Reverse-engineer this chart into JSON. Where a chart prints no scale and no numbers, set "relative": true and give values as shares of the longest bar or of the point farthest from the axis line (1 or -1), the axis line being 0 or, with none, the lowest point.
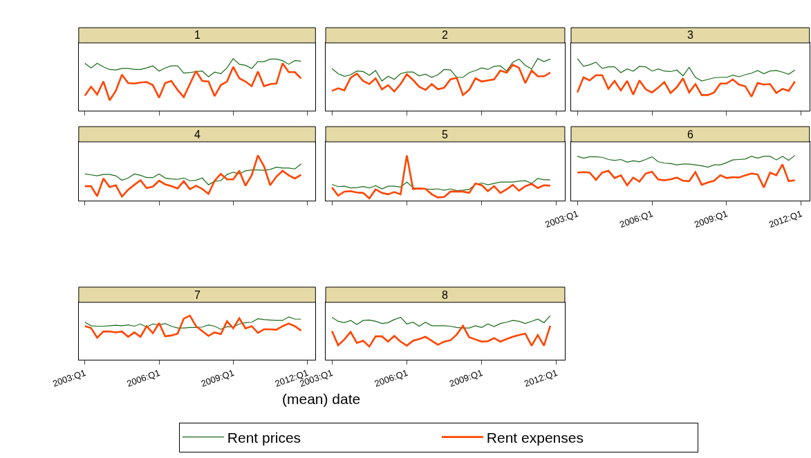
{
  "chart_data": [
    {
      "type": "line",
      "title": "1",
      "relative": true,
      "tick_labels": false,
      "legend": "bottom",
      "x": [
        "2003-01",
        "2003-04",
        "2003-07",
        "2003-10",
        "2004-01",
        "2004-04",
        "2004-07",
        "2004-10",
        "2005-01",
        "2005-04",
        "2005-07",
        "2005-10",
        "2006-01",
        "2006-04",
        "2006-07",
        "2006-10",
        "2007-01",
        "2007-04",
        "2007-07",
        "2007-10",
        "2008-01",
        "2008-04",
        "2008-07",
        "2008-10",
        "2009-01",
        "2009-04",
        "2009-07",
        "2009-10",
        "2010-01",
        "2010-04",
        "2010-07",
        "2010-10",
        "2011-01",
        "2011-04",
        "2011-07",
        "2011-10"
      ],
      "xlim": [
        "2002-10",
        "2012-05"
      ],
      "xticks": [
        {
          "value": "2003-01",
          "label": null
        },
        {
          "value": "2006-01",
          "label": null
        },
        {
          "value": "2009-01",
          "label": null
        },
        {
          "value": "2012-01",
          "label": null
        }
      ],
      "series": [
        {
          "name": "Rent prices",
          "color": "#1a6b1a",
          "values": [
            0.91,
            0.82,
            0.91,
            0.84,
            0.79,
            0.78,
            0.81,
            0.81,
            0.79,
            0.79,
            0.82,
            0.86,
            0.76,
            0.82,
            0.86,
            0.86,
            0.72,
            0.73,
            0.75,
            0.76,
            0.65,
            0.74,
            0.71,
            0.82,
            1.0,
            0.89,
            0.87,
            0.81,
            0.94,
            0.94,
            0.99,
            0.99,
            0.96,
            0.89,
            0.96,
            0.95
          ]
        },
        {
          "name": "Rent expenses",
          "color": "#ff4500",
          "values": [
            0.29,
            0.46,
            0.31,
            0.56,
            0.2,
            0.38,
            0.69,
            0.53,
            0.52,
            0.54,
            0.55,
            0.49,
            0.25,
            0.53,
            0.57,
            0.4,
            0.26,
            0.51,
            0.76,
            0.57,
            0.56,
            0.28,
            0.49,
            0.56,
            0.84,
            0.62,
            0.56,
            0.47,
            0.75,
            0.47,
            0.51,
            0.52,
            0.91,
            0.74,
            0.74,
            0.62
          ]
        }
      ]
    },
    {
      "type": "line",
      "title": "2",
      "relative": true,
      "tick_labels": false,
      "x": [
        "2003-01",
        "2003-04",
        "2003-07",
        "2003-10",
        "2004-01",
        "2004-04",
        "2004-07",
        "2004-10",
        "2005-01",
        "2005-04",
        "2005-07",
        "2005-10",
        "2006-01",
        "2006-04",
        "2006-07",
        "2006-10",
        "2007-01",
        "2007-04",
        "2007-07",
        "2007-10",
        "2008-01",
        "2008-04",
        "2008-07",
        "2008-10",
        "2009-01",
        "2009-04",
        "2009-07",
        "2009-10",
        "2010-01",
        "2010-04",
        "2010-07",
        "2010-10",
        "2011-01",
        "2011-04",
        "2011-07",
        "2011-10"
      ],
      "xlim": [
        "2002-10",
        "2012-05"
      ],
      "xticks": [
        {
          "value": "2003-01",
          "label": null
        },
        {
          "value": "2006-01",
          "label": null
        },
        {
          "value": "2009-01",
          "label": null
        },
        {
          "value": "2012-01",
          "label": null
        }
      ],
      "series": [
        {
          "color": "#1a6b1a",
          "values": [
            0.81,
            0.71,
            0.66,
            0.69,
            0.76,
            0.75,
            0.68,
            0.77,
            0.57,
            0.66,
            0.6,
            0.71,
            0.74,
            0.74,
            0.67,
            0.7,
            0.64,
            0.69,
            0.79,
            0.78,
            0.64,
            0.64,
            0.73,
            0.77,
            0.82,
            0.79,
            0.85,
            0.86,
            0.76,
            0.93,
            0.99,
            0.87,
            0.8,
            1.0,
            0.94,
            0.99
          ]
        },
        {
          "color": "#ff4500",
          "values": [
            0.38,
            0.43,
            0.39,
            0.63,
            0.71,
            0.57,
            0.51,
            0.62,
            0.41,
            0.49,
            0.37,
            0.51,
            0.7,
            0.59,
            0.46,
            0.4,
            0.51,
            0.41,
            0.44,
            0.6,
            0.63,
            0.3,
            0.4,
            0.62,
            0.56,
            0.58,
            0.6,
            0.77,
            0.73,
            0.88,
            0.82,
            0.53,
            0.77,
            0.66,
            0.66,
            0.73
          ]
        }
      ]
    },
    {
      "type": "line",
      "title": "3",
      "relative": true,
      "tick_labels": false,
      "x": [
        "2003-01",
        "2003-04",
        "2003-07",
        "2003-10",
        "2004-01",
        "2004-04",
        "2004-07",
        "2004-10",
        "2005-01",
        "2005-04",
        "2005-07",
        "2005-10",
        "2006-01",
        "2006-04",
        "2006-07",
        "2006-10",
        "2007-01",
        "2007-04",
        "2007-07",
        "2007-10",
        "2008-01",
        "2008-04",
        "2008-07",
        "2008-10",
        "2009-01",
        "2009-04",
        "2009-07",
        "2009-10",
        "2010-01",
        "2010-04",
        "2010-07",
        "2010-10",
        "2011-01",
        "2011-04",
        "2011-07",
        "2011-10"
      ],
      "xlim": [
        "2002-10",
        "2012-05"
      ],
      "xticks": [
        {
          "value": "2003-01",
          "label": null
        },
        {
          "value": "2006-01",
          "label": null
        },
        {
          "value": "2009-01",
          "label": null
        },
        {
          "value": "2012-01",
          "label": null
        }
      ],
      "series": [
        {
          "color": "#1a6b1a",
          "values": [
            1.0,
            0.85,
            0.88,
            0.93,
            0.81,
            0.84,
            0.84,
            0.73,
            0.8,
            0.76,
            0.85,
            0.84,
            0.76,
            0.8,
            0.76,
            0.75,
            0.78,
            0.67,
            0.83,
            0.64,
            0.57,
            0.6,
            0.63,
            0.64,
            0.64,
            0.68,
            0.65,
            0.69,
            0.72,
            0.77,
            0.71,
            0.76,
            0.77,
            0.74,
            0.7,
            0.78
          ]
        },
        {
          "color": "#ff4500",
          "values": [
            0.35,
            0.64,
            0.58,
            0.68,
            0.68,
            0.42,
            0.57,
            0.39,
            0.57,
            0.31,
            0.58,
            0.41,
            0.35,
            0.44,
            0.55,
            0.34,
            0.45,
            0.62,
            0.35,
            0.51,
            0.3,
            0.3,
            0.35,
            0.52,
            0.52,
            0.6,
            0.5,
            0.47,
            0.27,
            0.53,
            0.5,
            0.51,
            0.34,
            0.42,
            0.38,
            0.56
          ]
        }
      ]
    },
    {
      "type": "line",
      "title": "4",
      "relative": true,
      "tick_labels": false,
      "x": [
        "2003-01",
        "2003-04",
        "2003-07",
        "2003-10",
        "2004-01",
        "2004-04",
        "2004-07",
        "2004-10",
        "2005-01",
        "2005-04",
        "2005-07",
        "2005-10",
        "2006-01",
        "2006-04",
        "2006-07",
        "2006-10",
        "2007-01",
        "2007-04",
        "2007-07",
        "2007-10",
        "2008-01",
        "2008-04",
        "2008-07",
        "2008-10",
        "2009-01",
        "2009-04",
        "2009-07",
        "2009-10",
        "2010-01",
        "2010-04",
        "2010-07",
        "2010-10",
        "2011-01",
        "2011-04",
        "2011-07",
        "2011-10"
      ],
      "xlim": [
        "2002-10",
        "2012-05"
      ],
      "xticks": [
        {
          "value": "2003-01",
          "label": null
        },
        {
          "value": "2006-01",
          "label": null
        },
        {
          "value": "2009-01",
          "label": null
        },
        {
          "value": "2012-01",
          "label": null
        }
      ],
      "series": [
        {
          "color": "#1a6b1a",
          "values": [
            0.59,
            0.57,
            0.55,
            0.58,
            0.58,
            0.55,
            0.45,
            0.5,
            0.59,
            0.56,
            0.51,
            0.51,
            0.59,
            0.5,
            0.48,
            0.47,
            0.5,
            0.44,
            0.45,
            0.5,
            0.35,
            0.43,
            0.44,
            0.58,
            0.63,
            0.59,
            0.66,
            0.68,
            0.68,
            0.67,
            0.69,
            0.74,
            0.72,
            0.72,
            0.7,
            0.81
          ]
        },
        {
          "color": "#ff4500",
          "values": [
            0.32,
            0.32,
            0.1,
            0.49,
            0.3,
            0.34,
            0.09,
            0.24,
            0.35,
            0.45,
            0.28,
            0.31,
            0.44,
            0.36,
            0.32,
            0.27,
            0.43,
            0.25,
            0.33,
            0.26,
            0.15,
            0.44,
            0.59,
            0.47,
            0.47,
            0.66,
            0.33,
            0.56,
            1.0,
            0.76,
            0.34,
            0.53,
            0.66,
            0.56,
            0.49,
            0.57
          ]
        }
      ]
    },
    {
      "type": "line",
      "title": "5",
      "relative": true,
      "tick_labels": false,
      "x": [
        "2003-01",
        "2003-04",
        "2003-07",
        "2003-10",
        "2004-01",
        "2004-04",
        "2004-07",
        "2004-10",
        "2005-01",
        "2005-04",
        "2005-07",
        "2005-10",
        "2006-01",
        "2006-04",
        "2006-07",
        "2006-10",
        "2007-01",
        "2007-04",
        "2007-07",
        "2007-10",
        "2008-01",
        "2008-04",
        "2008-07",
        "2008-10",
        "2009-01",
        "2009-04",
        "2009-07",
        "2009-10",
        "2010-01",
        "2010-04",
        "2010-07",
        "2010-10",
        "2011-01",
        "2011-04",
        "2011-07",
        "2011-10"
      ],
      "xlim": [
        "2002-10",
        "2012-05"
      ],
      "xticks": [
        {
          "value": "2003-01",
          "label": null
        },
        {
          "value": "2006-01",
          "label": null
        },
        {
          "value": "2009-01",
          "label": null
        },
        {
          "value": "2012-01",
          "label": null
        }
      ],
      "series": [
        {
          "color": "#1a6b1a",
          "values": [
            0.36,
            0.31,
            0.32,
            0.28,
            0.29,
            0.31,
            0.28,
            0.33,
            0.26,
            0.32,
            0.32,
            0.3,
            0.41,
            0.29,
            0.26,
            0.26,
            0.25,
            0.26,
            0.23,
            0.26,
            0.22,
            0.23,
            0.25,
            0.36,
            0.39,
            0.35,
            0.38,
            0.41,
            0.41,
            0.41,
            0.43,
            0.44,
            0.38,
            0.49,
            0.46,
            0.46
          ]
        },
        {
          "color": "#ff4500",
          "values": [
            0.29,
            0.11,
            0.2,
            0.21,
            0.18,
            0.17,
            0.05,
            0.25,
            0.17,
            0.14,
            0.19,
            0.14,
            1.0,
            0.26,
            0.27,
            0.26,
            0.14,
            0.07,
            0.08,
            0.2,
            0.2,
            0.2,
            0.17,
            0.38,
            0.34,
            0.21,
            0.32,
            0.17,
            0.25,
            0.35,
            0.22,
            0.32,
            0.37,
            0.28,
            0.34,
            0.33
          ]
        }
      ]
    },
    {
      "type": "line",
      "title": "6",
      "relative": true,
      "tick_labels": "x",
      "x": [
        "2003-01",
        "2003-04",
        "2003-07",
        "2003-10",
        "2004-01",
        "2004-04",
        "2004-07",
        "2004-10",
        "2005-01",
        "2005-04",
        "2005-07",
        "2005-10",
        "2006-01",
        "2006-04",
        "2006-07",
        "2006-10",
        "2007-01",
        "2007-04",
        "2007-07",
        "2007-10",
        "2008-01",
        "2008-04",
        "2008-07",
        "2008-10",
        "2009-01",
        "2009-04",
        "2009-07",
        "2009-10",
        "2010-01",
        "2010-04",
        "2010-07",
        "2010-10",
        "2011-01",
        "2011-04",
        "2011-07",
        "2011-10"
      ],
      "xlim": [
        "2002-10",
        "2012-05"
      ],
      "xticks": [
        {
          "value": "2003-01",
          "label": "2003:Q1"
        },
        {
          "value": "2006-01",
          "label": "2006:Q1"
        },
        {
          "value": "2009-01",
          "label": "2009:Q1"
        },
        {
          "value": "2012-01",
          "label": "2012:Q1"
        }
      ],
      "series": [
        {
          "color": "#1a6b1a",
          "values": [
            0.98,
            0.94,
            0.97,
            0.97,
            0.96,
            0.91,
            0.89,
            0.91,
            0.85,
            0.88,
            0.86,
            0.91,
            0.97,
            0.86,
            0.83,
            0.82,
            0.79,
            0.81,
            0.81,
            0.79,
            0.77,
            0.74,
            0.79,
            0.79,
            0.84,
            0.9,
            0.91,
            0.92,
            0.98,
            0.94,
            0.98,
            0.98,
            0.9,
            0.98,
            0.89,
            1.0
          ]
        },
        {
          "color": "#ff4500",
          "values": [
            0.62,
            0.63,
            0.62,
            0.46,
            0.62,
            0.66,
            0.5,
            0.56,
            0.34,
            0.51,
            0.42,
            0.6,
            0.64,
            0.47,
            0.45,
            0.47,
            0.51,
            0.44,
            0.43,
            0.63,
            0.35,
            0.4,
            0.44,
            0.56,
            0.5,
            0.52,
            0.51,
            0.56,
            0.6,
            0.58,
            0.29,
            0.62,
            0.56,
            0.8,
            0.43,
            0.45
          ]
        }
      ]
    },
    {
      "type": "line",
      "title": "7",
      "xlabel": "(mean) date",
      "relative": true,
      "tick_labels": "x",
      "x": [
        "2003-01",
        "2003-04",
        "2003-07",
        "2003-10",
        "2004-01",
        "2004-04",
        "2004-07",
        "2004-10",
        "2005-01",
        "2005-04",
        "2005-07",
        "2005-10",
        "2006-01",
        "2006-04",
        "2006-07",
        "2006-10",
        "2007-01",
        "2007-04",
        "2007-07",
        "2007-10",
        "2008-01",
        "2008-04",
        "2008-07",
        "2008-10",
        "2009-01",
        "2009-04",
        "2009-07",
        "2009-10",
        "2010-01",
        "2010-04",
        "2010-07",
        "2010-10",
        "2011-01",
        "2011-04",
        "2011-07",
        "2011-10"
      ],
      "xlim": [
        "2002-10",
        "2012-05"
      ],
      "xticks": [
        {
          "value": "2003-01",
          "label": "2003:Q1"
        },
        {
          "value": "2006-01",
          "label": "2006:Q1"
        },
        {
          "value": "2009-01",
          "label": "2009:Q1"
        },
        {
          "value": "2012-01",
          "label": "2012:Q1"
        }
      ],
      "series": [
        {
          "color": "#1a6b1a",
          "values": [
            0.85,
            0.77,
            0.76,
            0.76,
            0.77,
            0.78,
            0.77,
            0.79,
            0.76,
            0.81,
            0.74,
            0.81,
            0.79,
            0.82,
            0.76,
            0.72,
            0.72,
            0.73,
            0.73,
            0.74,
            0.79,
            0.76,
            0.69,
            0.75,
            0.74,
            0.81,
            0.84,
            0.85,
            0.93,
            0.91,
            0.9,
            0.89,
            0.89,
            0.97,
            0.92,
            0.92
          ]
        },
        {
          "color": "#ff4500",
          "values": [
            0.76,
            0.72,
            0.5,
            0.64,
            0.64,
            0.62,
            0.64,
            0.52,
            0.62,
            0.52,
            0.76,
            0.6,
            0.83,
            0.53,
            0.55,
            0.59,
            0.93,
            1.0,
            0.76,
            0.65,
            0.54,
            0.62,
            0.58,
            0.87,
            0.71,
            0.94,
            0.71,
            0.76,
            0.61,
            0.69,
            0.69,
            0.68,
            0.76,
            0.82,
            0.76,
            0.66
          ]
        }
      ]
    },
    {
      "type": "line",
      "title": "8",
      "relative": true,
      "tick_labels": "x",
      "x": [
        "2003-01",
        "2003-04",
        "2003-07",
        "2003-10",
        "2004-01",
        "2004-04",
        "2004-07",
        "2004-10",
        "2005-01",
        "2005-04",
        "2005-07",
        "2005-10",
        "2006-01",
        "2006-04",
        "2006-07",
        "2006-10",
        "2007-01",
        "2007-04",
        "2007-07",
        "2007-10",
        "2008-01",
        "2008-04",
        "2008-07",
        "2008-10",
        "2009-01",
        "2009-04",
        "2009-07",
        "2009-10",
        "2010-01",
        "2010-04",
        "2010-07",
        "2010-10",
        "2011-01",
        "2011-04",
        "2011-07",
        "2011-10"
      ],
      "xlim": [
        "2002-10",
        "2012-05"
      ],
      "xticks": [
        {
          "value": "2003-01",
          "label": "2003:Q1"
        },
        {
          "value": "2006-01",
          "label": "2006:Q1"
        },
        {
          "value": "2009-01",
          "label": "2009:Q1"
        },
        {
          "value": "2012-01",
          "label": "2012:Q1"
        }
      ],
      "series": [
        {
          "color": "#1a6b1a",
          "values": [
            0.96,
            0.87,
            0.84,
            0.89,
            0.8,
            0.89,
            0.9,
            0.87,
            0.82,
            0.84,
            0.91,
            0.96,
            0.81,
            0.85,
            0.76,
            0.85,
            0.77,
            0.77,
            0.77,
            0.76,
            0.73,
            0.72,
            0.72,
            0.77,
            0.73,
            0.81,
            0.75,
            0.82,
            0.85,
            0.89,
            0.87,
            0.82,
            0.87,
            0.92,
            0.84,
            1.0
          ]
        },
        {
          "color": "#ff4500",
          "values": [
            0.65,
            0.33,
            0.46,
            0.63,
            0.38,
            0.43,
            0.3,
            0.53,
            0.53,
            0.41,
            0.54,
            0.41,
            0.32,
            0.43,
            0.47,
            0.52,
            0.43,
            0.34,
            0.41,
            0.44,
            0.57,
            0.77,
            0.51,
            0.46,
            0.41,
            0.42,
            0.49,
            0.41,
            0.47,
            0.52,
            0.56,
            0.59,
            0.32,
            0.56,
            0.32,
            0.77
          ]
        }
      ]
    }
  ]
}
